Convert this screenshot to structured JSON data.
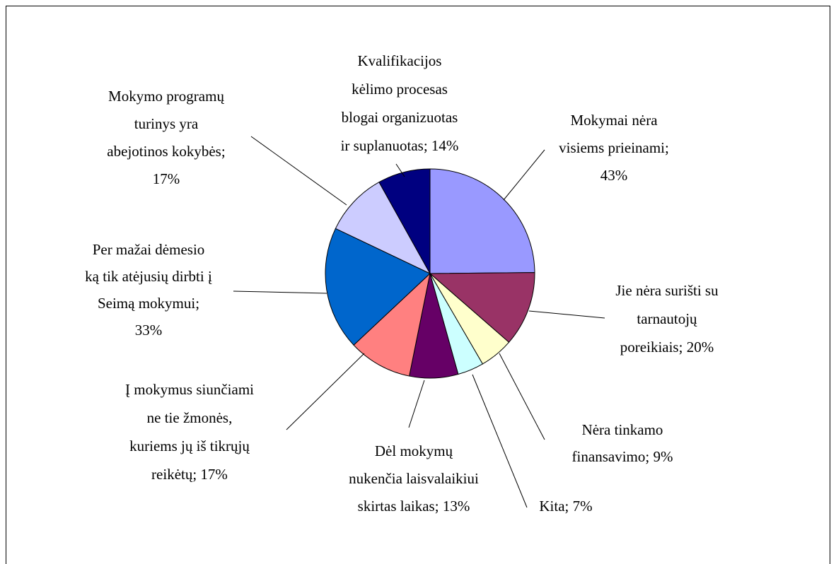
{
  "chart_data": {
    "type": "pie",
    "labels": [
      [
        "Mokymai nėra",
        "visiems prieinami;",
        "43%"
      ],
      [
        "Jie nėra surišti su",
        "tarnautojų",
        "poreikiais; 20%"
      ],
      [
        "Nėra tinkamo",
        "finansavimo; 9%"
      ],
      [
        "Kita; 7%"
      ],
      [
        "Dėl mokymų",
        "nukenčia laisvalaikiui",
        "skirtas laikas; 13%"
      ],
      [
        "Į mokymus siunčiami",
        "ne tie žmonės,",
        "kuriems jų iš tikrųjų",
        "reikėtų; 17%"
      ],
      [
        "Per mažai dėmesio",
        "ką tik atėjusių dirbti į",
        "Seimą mokymui;",
        "33%"
      ],
      [
        "Mokymo programų",
        "turinys yra",
        "abejotinos kokybės;",
        "17%"
      ],
      [
        "Kvalifikacijos",
        "kėlimo procesas",
        "blogai organizuotas",
        "ir suplanuotas; 14%"
      ]
    ],
    "values": [
      43,
      20,
      9,
      7,
      13,
      17,
      33,
      17,
      14
    ],
    "colors": [
      "#9999ff",
      "#993366",
      "#ffffcc",
      "#ccffff",
      "#660066",
      "#ff8080",
      "#0066cc",
      "#ccccff",
      "#000080"
    ]
  }
}
